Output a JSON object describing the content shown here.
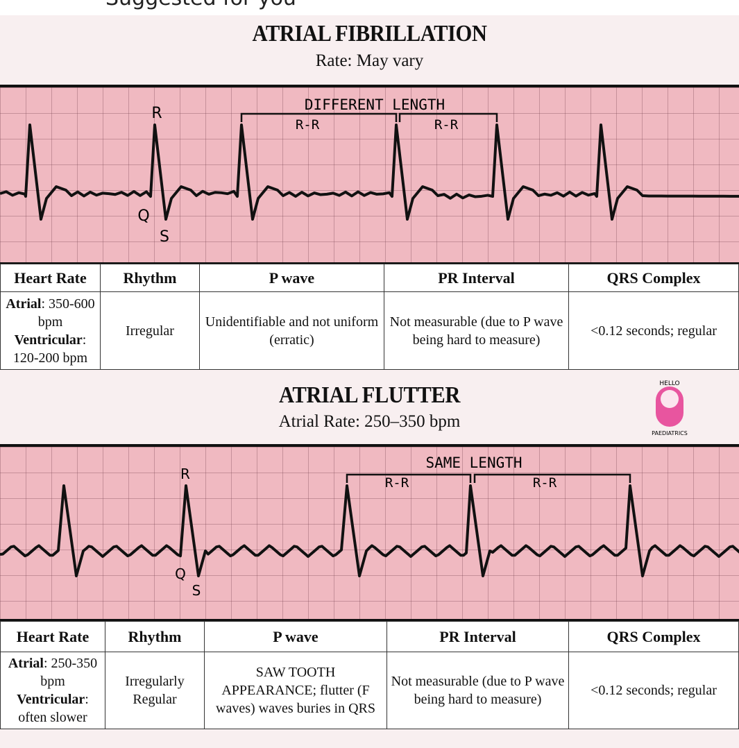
{
  "header": {
    "suggested": "Suggested for you"
  },
  "colors": {
    "grid_pink": "#f0b9c1",
    "trace": "#111111",
    "logo_pink": "#e8559f"
  },
  "afib": {
    "title": "ATRIAL FIBRILLATION",
    "subtitle": "Rate: May vary",
    "labels": {
      "r": "R",
      "q": "Q",
      "s": "S",
      "bracket": "DIFFERENT LENGTH",
      "rr1": "R-R",
      "rr2": "R-R"
    },
    "table": {
      "headers": [
        "Heart Rate",
        "Rhythm",
        "P wave",
        "PR Interval",
        "QRS Complex"
      ],
      "heart_rate": {
        "atrial_label": "Atrial",
        "atrial_value": ": 350-600 bpm",
        "ventricular_label": "Ventricular",
        "ventricular_value": ": 120-200 bpm"
      },
      "rhythm": "Irregular",
      "p_wave": "Unidentifiable and not uniform (erratic)",
      "pr_interval": "Not measurable (due to P wave being hard to measure)",
      "qrs": "<0.12 seconds; regular"
    }
  },
  "aflutter": {
    "title": "ATRIAL FLUTTER",
    "subtitle": "Atrial Rate: 250–350 bpm",
    "labels": {
      "r": "R",
      "q": "Q",
      "s": "S",
      "bracket": "SAME LENGTH",
      "rr1": "R-R",
      "rr2": "R-R"
    },
    "table": {
      "headers": [
        "Heart Rate",
        "Rhythm",
        "P wave",
        "PR Interval",
        "QRS Complex"
      ],
      "heart_rate": {
        "atrial_label": "Atrial",
        "atrial_value": ": 250-350 bpm",
        "ventricular_label": "Ventricular",
        "ventricular_value": ": often slower"
      },
      "rhythm": "Irregularly Regular",
      "p_wave": "SAW TOOTH APPEARANCE; flutter (F waves) waves buries in QRS",
      "pr_interval": "Not measurable (due to P wave being hard to measure)",
      "qrs": "<0.12 seconds; regular"
    }
  },
  "logo": {
    "text_top": "HELLO",
    "text_bottom": "PAEDIATRICS"
  }
}
